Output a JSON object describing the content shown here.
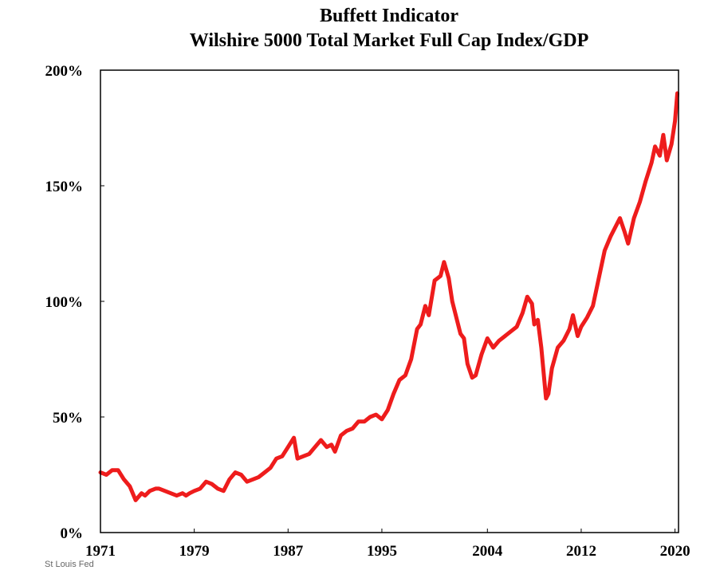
{
  "chart_data": {
    "type": "line",
    "title": "Buffett Indicator",
    "subtitle": "Wilshire 5000 Total Market Full Cap Index/GDP",
    "xlabel": "",
    "ylabel": "",
    "xlim": [
      1971,
      2020.3
    ],
    "ylim": [
      0,
      200
    ],
    "grid": false,
    "x_ticks": [
      {
        "value": 1971,
        "label": "1971"
      },
      {
        "value": 1979,
        "label": "1979"
      },
      {
        "value": 1987,
        "label": "1987"
      },
      {
        "value": 1995,
        "label": "1995"
      },
      {
        "value": 2004,
        "label": "2004"
      },
      {
        "value": 2012,
        "label": "2012"
      },
      {
        "value": 2020,
        "label": "2020"
      }
    ],
    "y_ticks": [
      {
        "value": 0,
        "label": "0%"
      },
      {
        "value": 50,
        "label": "50%"
      },
      {
        "value": 100,
        "label": "100%"
      },
      {
        "value": 150,
        "label": "150%"
      },
      {
        "value": 200,
        "label": "200%"
      }
    ],
    "series": [
      {
        "color": "#ee1c1c",
        "x": [
          1971.0,
          1971.5,
          1972.0,
          1972.5,
          1973.0,
          1973.5,
          1974.0,
          1974.5,
          1974.8,
          1975.2,
          1975.7,
          1976.0,
          1976.5,
          1977.0,
          1977.5,
          1978.0,
          1978.3,
          1978.6,
          1979.0,
          1979.5,
          1980.0,
          1980.5,
          1981.0,
          1981.5,
          1982.0,
          1982.5,
          1983.0,
          1983.5,
          1984.0,
          1984.5,
          1985.0,
          1985.5,
          1986.0,
          1986.5,
          1987.0,
          1987.5,
          1987.8,
          1988.3,
          1988.8,
          1989.3,
          1989.8,
          1990.3,
          1990.7,
          1991.0,
          1991.5,
          1992.0,
          1992.5,
          1993.0,
          1993.5,
          1994.0,
          1994.5,
          1995.0,
          1995.5,
          1996.0,
          1996.5,
          1997.0,
          1997.5,
          1998.0,
          1998.3,
          1998.7,
          1999.0,
          1999.5,
          2000.0,
          2000.3,
          2000.7,
          2001.0,
          2001.3,
          2001.7,
          2002.0,
          2002.3,
          2002.7,
          2003.0,
          2003.5,
          2004.0,
          2004.5,
          2005.0,
          2005.5,
          2006.0,
          2006.5,
          2007.0,
          2007.4,
          2007.8,
          2008.0,
          2008.3,
          2008.6,
          2009.0,
          2009.2,
          2009.5,
          2010.0,
          2010.5,
          2011.0,
          2011.3,
          2011.7,
          2012.0,
          2012.5,
          2013.0,
          2013.5,
          2014.0,
          2014.5,
          2015.0,
          2015.3,
          2015.7,
          2016.0,
          2016.5,
          2017.0,
          2017.5,
          2018.0,
          2018.3,
          2018.7,
          2019.0,
          2019.3,
          2019.7,
          2020.0,
          2020.2
        ],
        "values": [
          26,
          25,
          27,
          27,
          23,
          20,
          14,
          17,
          16,
          18,
          19,
          19,
          18,
          17,
          16,
          17,
          16,
          17,
          18,
          19,
          22,
          21,
          19,
          18,
          23,
          26,
          25,
          22,
          23,
          24,
          26,
          28,
          32,
          33,
          37,
          41,
          32,
          33,
          34,
          37,
          40,
          37,
          38,
          35,
          42,
          44,
          45,
          48,
          48,
          50,
          51,
          49,
          53,
          60,
          66,
          68,
          75,
          88,
          90,
          98,
          94,
          109,
          111,
          117,
          110,
          100,
          94,
          86,
          84,
          73,
          67,
          68,
          77,
          84,
          80,
          83,
          85,
          87,
          89,
          95,
          102,
          99,
          90,
          92,
          80,
          58,
          60,
          71,
          80,
          83,
          88,
          94,
          85,
          89,
          93,
          98,
          110,
          122,
          128,
          133,
          136,
          130,
          125,
          136,
          143,
          152,
          160,
          167,
          163,
          172,
          161,
          168,
          178,
          190
        ]
      }
    ],
    "source_note": "St Louis Fed"
  }
}
